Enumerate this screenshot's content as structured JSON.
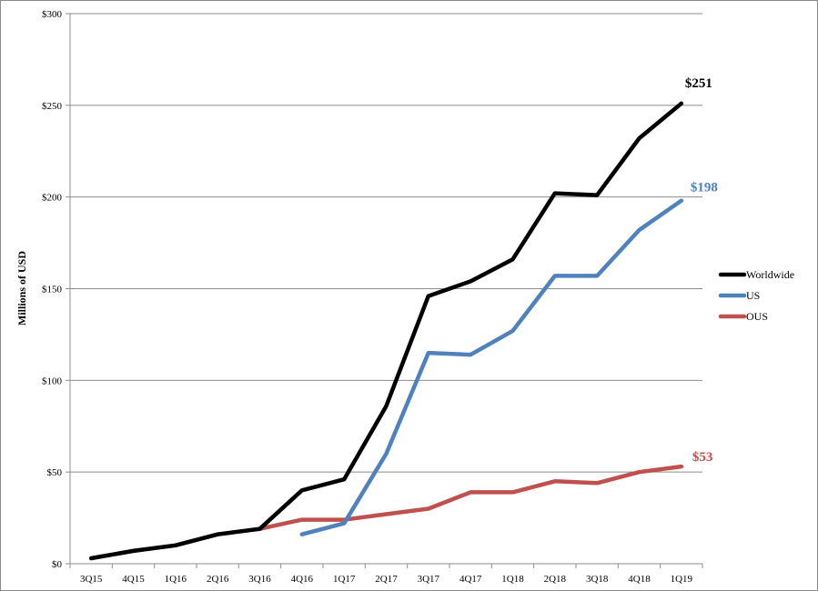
{
  "chart_data": {
    "type": "line",
    "title": "",
    "xlabel": "",
    "ylabel": "Millions of USD",
    "categories": [
      "3Q15",
      "4Q15",
      "1Q16",
      "2Q16",
      "3Q16",
      "4Q16",
      "1Q17",
      "2Q17",
      "3Q17",
      "4Q17",
      "1Q18",
      "2Q18",
      "3Q18",
      "4Q18",
      "1Q19"
    ],
    "ylim": [
      0,
      300
    ],
    "y_ticks": [
      0,
      50,
      100,
      150,
      200,
      250,
      300
    ],
    "y_tick_labels": [
      "$0",
      "$50",
      "$100",
      "$150",
      "$200",
      "$250",
      "$300"
    ],
    "grid": "horizontal",
    "legend_position": "right",
    "series": [
      {
        "name": "Worldwide",
        "color": "#000000",
        "values": [
          3,
          7,
          10,
          16,
          19,
          40,
          46,
          86,
          146,
          154,
          166,
          202,
          201,
          232,
          251
        ],
        "end_label": "$251"
      },
      {
        "name": "US",
        "color": "#4f81bd",
        "values": [
          null,
          null,
          null,
          null,
          null,
          16,
          22,
          60,
          115,
          114,
          127,
          157,
          157,
          182,
          198
        ],
        "end_label": "$198"
      },
      {
        "name": "OUS",
        "color": "#c0504d",
        "values": [
          3,
          7,
          10,
          16,
          19,
          24,
          24,
          27,
          30,
          39,
          39,
          45,
          44,
          50,
          53
        ],
        "end_label": "$53"
      }
    ]
  }
}
